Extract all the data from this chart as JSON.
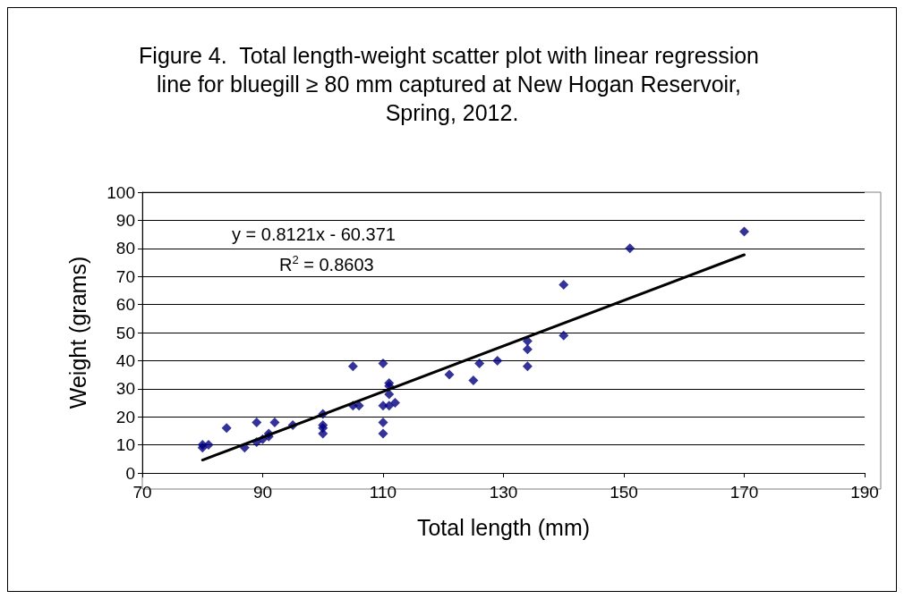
{
  "chart_data": {
    "type": "scatter",
    "title": "Figure 4.  Total length-weight scatter plot with linear regression line for bluegill ≥ 80 mm captured at New Hogan Reservoir, Spring, 2012.",
    "xlabel": "Total length (mm)",
    "ylabel": "Weight (grams)",
    "annotations": [
      "y = 0.8121x - 60.371",
      "R$^{2}$ = 0.8603"
    ],
    "series": [
      {
        "color": "#000080",
        "marker": "diamond",
        "x": [
          80,
          80,
          81,
          84,
          87,
          89,
          89,
          90,
          91,
          91,
          92,
          95,
          100,
          100,
          100,
          100,
          105,
          105,
          106,
          110,
          110,
          110,
          110,
          111,
          111,
          111,
          111,
          112,
          121,
          125,
          126,
          129,
          134,
          134,
          134,
          140,
          140,
          151,
          170
        ],
        "values": [
          9,
          10,
          10,
          16,
          9,
          11,
          18,
          12,
          13,
          14,
          18,
          17,
          21,
          17,
          16,
          14,
          24,
          38,
          24,
          39,
          24,
          18,
          14,
          32,
          31,
          28,
          24,
          25,
          35,
          33,
          39,
          40,
          47,
          44,
          38,
          67,
          49,
          80,
          86
        ]
      },
      {
        "type": "line",
        "color": "#000000",
        "marker": "none",
        "x": [
          80,
          170
        ],
        "values": [
          4.6,
          77.7
        ]
      }
    ],
    "xlim": [
      70,
      190
    ],
    "xticks": [
      70,
      90,
      110,
      130,
      150,
      170,
      190
    ],
    "ylim": [
      0,
      100
    ],
    "yticks": [
      0,
      10,
      20,
      30,
      40,
      50,
      60,
      70,
      80,
      90,
      100
    ],
    "grid": "y"
  }
}
